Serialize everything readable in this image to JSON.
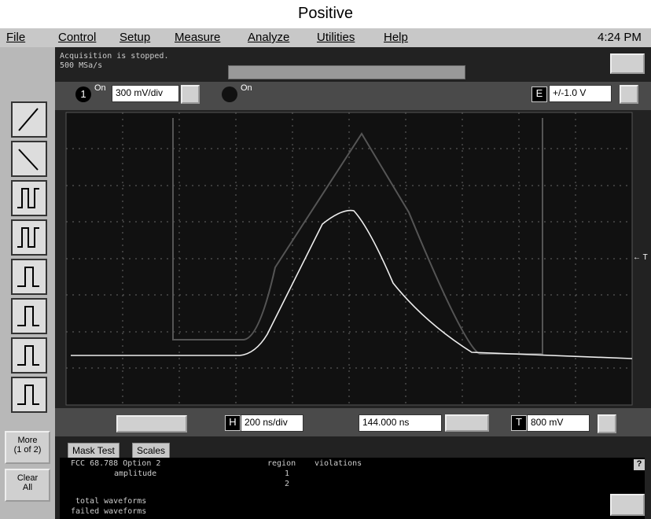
{
  "title": "Positive",
  "menu": [
    "File",
    "Control",
    "Setup",
    "Measure",
    "Analyze",
    "Utilities",
    "Help"
  ],
  "clock": "4:24 PM",
  "status": [
    "Acquisition is stopped.",
    "500 MSa/s"
  ],
  "channel1": {
    "number": "1",
    "on": "On",
    "scale": "300 mV/div"
  },
  "channel2": {
    "on": "On"
  },
  "external": {
    "label": "E",
    "range": "+/-1.0 V"
  },
  "marker": "← T",
  "side": {
    "more": [
      "More",
      "(1 of 2)"
    ],
    "clear": [
      "Clear",
      "All"
    ]
  },
  "timebase": {
    "label": "H",
    "scale": "200 ns/div",
    "position": "144.000 ns"
  },
  "trigger": {
    "label": "T",
    "level": "800 mV"
  },
  "tabs": [
    "Mask Test",
    "Scales"
  ],
  "results": {
    "test": "FCC 68.788 Option 2",
    "amplitude": "amplitude",
    "region": "region",
    "violations": "violations",
    "regions": [
      "1",
      "2"
    ],
    "total": "total waveforms",
    "failed": "failed waveforms"
  },
  "help": "?"
}
